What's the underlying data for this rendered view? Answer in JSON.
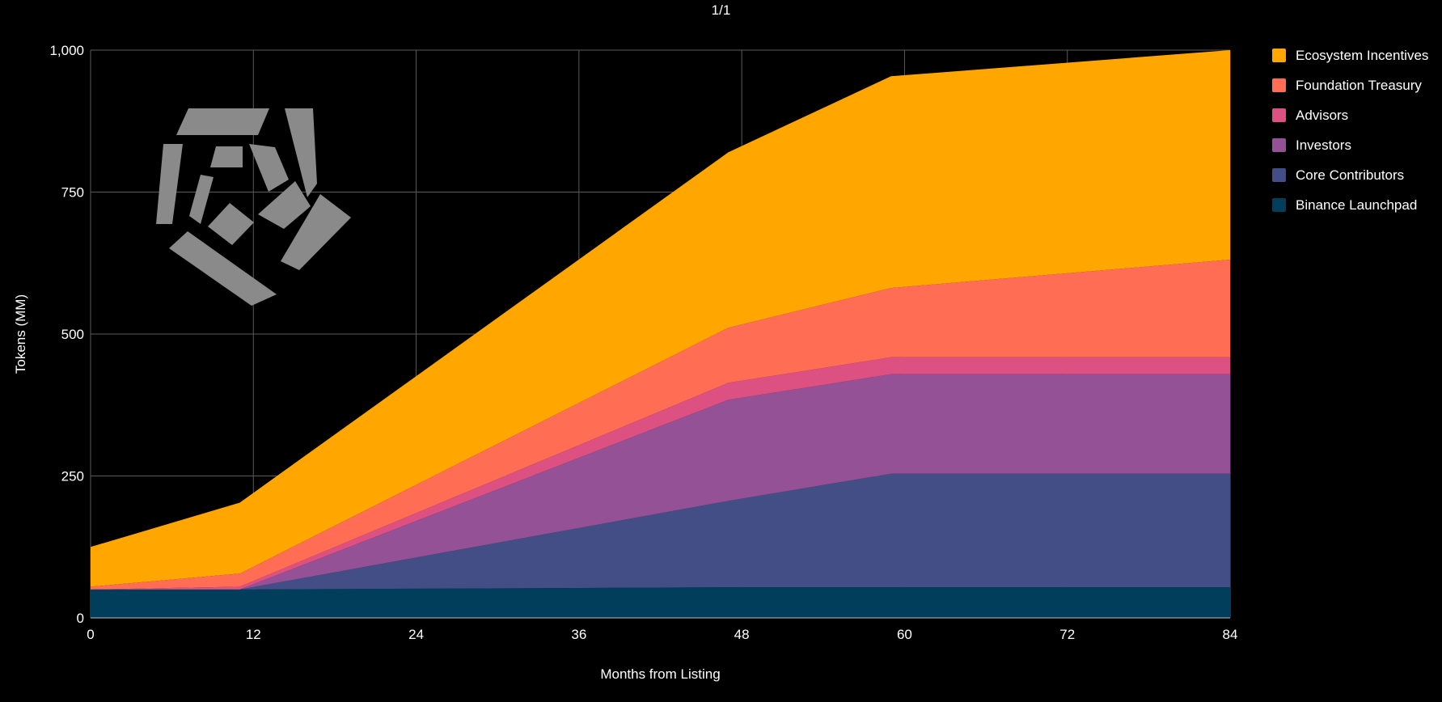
{
  "page_indicator": "1/1",
  "logo": {
    "name": "pentagon-logo"
  },
  "chart_data": {
    "type": "area",
    "stacked": true,
    "title": "",
    "xlabel": "Months from Listing",
    "ylabel": "Tokens (MM)",
    "xlim": [
      0,
      84
    ],
    "ylim": [
      0,
      1000
    ],
    "x_ticks": [
      0,
      12,
      24,
      36,
      48,
      60,
      72,
      84
    ],
    "y_ticks": [
      0,
      250,
      500,
      750,
      1000
    ],
    "y_tick_labels": [
      "0",
      "250",
      "500",
      "750",
      "1,000"
    ],
    "grid": true,
    "legend_position": "right",
    "x": [
      0,
      11,
      47,
      59,
      84
    ],
    "series": [
      {
        "name": "Binance Launchpad",
        "color": "#003e5c",
        "values": [
          50,
          50,
          54,
          54,
          54
        ]
      },
      {
        "name": "Core Contributors",
        "color": "#444e86",
        "values": [
          0,
          0,
          152,
          200,
          200
        ]
      },
      {
        "name": "Investors",
        "color": "#955196",
        "values": [
          0,
          0,
          178,
          175,
          175
        ]
      },
      {
        "name": "Advisors",
        "color": "#dd5182",
        "values": [
          0,
          5,
          30,
          30,
          30
        ]
      },
      {
        "name": "Foundation Treasury",
        "color": "#ff6e54",
        "values": [
          5,
          23,
          97,
          122,
          172
        ]
      },
      {
        "name": "Ecosystem Incentives",
        "color": "#ffa600",
        "values": [
          70,
          125,
          309,
          373,
          369
        ]
      }
    ]
  }
}
